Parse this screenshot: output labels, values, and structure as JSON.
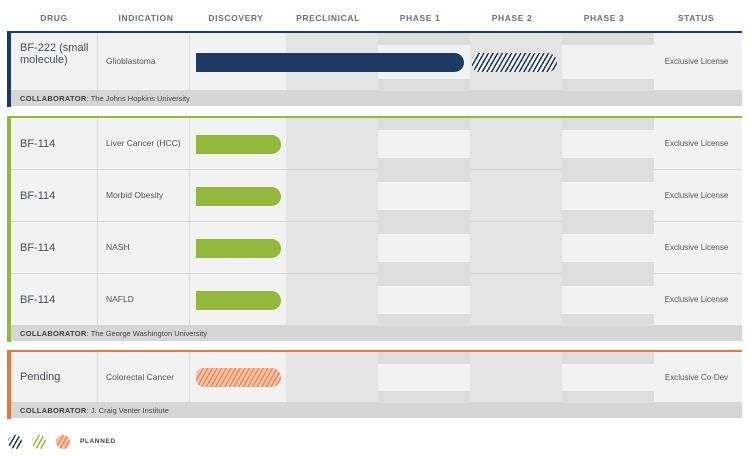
{
  "colors": {
    "navy": "#1d3a63",
    "green": "#93b83c",
    "orange": "#e5773e",
    "orange_planned": "#f0a98a"
  },
  "chart_data": {
    "type": "bar",
    "phases": [
      "DISCOVERY",
      "PRECLINICAL",
      "PHASE 1",
      "PHASE 2",
      "PHASE 3"
    ],
    "columns": {
      "drug": "DRUG",
      "indication": "INDICATION",
      "status": "STATUS"
    },
    "collaborator_label": "COLLABORATOR",
    "groups": [
      {
        "color": "navy",
        "collaborator": "The Johns Hopkins University",
        "rows": [
          {
            "drug": "BF-222 (small molecule)",
            "indication": "Glioblastoma",
            "progress": 2.99,
            "planned_through": 4,
            "status": "Exclusive License"
          }
        ]
      },
      {
        "color": "green",
        "collaborator": "The George Washington University",
        "rows": [
          {
            "drug": "BF-114",
            "indication": "Liver Cancer (HCC)",
            "progress": 1,
            "planned_through": 0,
            "status": "Exclusive License"
          },
          {
            "drug": "BF-114",
            "indication": "Morbid Obesity",
            "progress": 1,
            "planned_through": 0,
            "status": "Exclusive License"
          },
          {
            "drug": "BF-114",
            "indication": "NASH",
            "progress": 1,
            "planned_through": 0,
            "status": "Exclusive License"
          },
          {
            "drug": "BF-114",
            "indication": "NAFLD",
            "progress": 1,
            "planned_through": 0,
            "status": "Exclusive License"
          }
        ]
      },
      {
        "color": "orange",
        "collaborator": "J. Craig Venter Institute",
        "rows": [
          {
            "drug": "Pending",
            "indication": "Colorectal Cancer",
            "progress": 0,
            "planned_through": 1,
            "status": "Exclusive Co-Dev"
          }
        ]
      }
    ],
    "legend": {
      "swatches": [
        "navy",
        "green",
        "orange"
      ],
      "label": "PLANNED"
    }
  }
}
